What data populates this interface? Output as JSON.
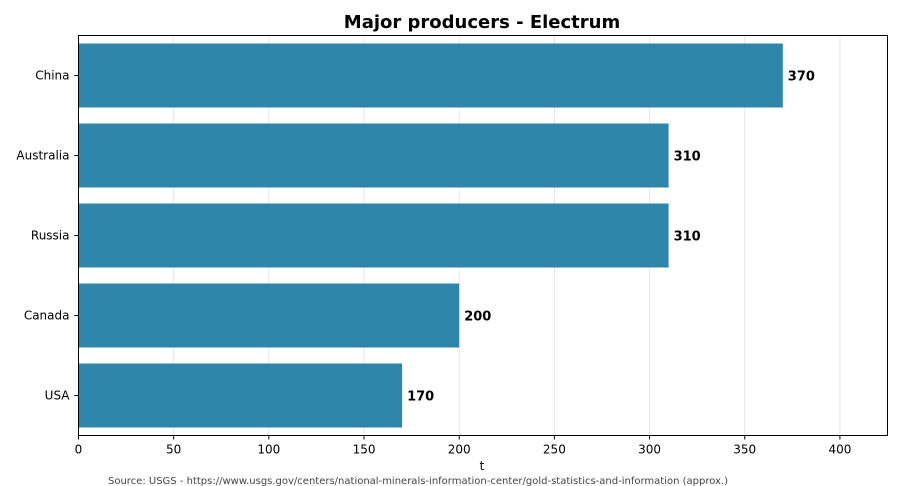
{
  "chart_data": {
    "type": "bar",
    "orientation": "horizontal",
    "title": "Major producers - Electrum",
    "categories": [
      "China",
      "Australia",
      "Russia",
      "Canada",
      "USA"
    ],
    "values": [
      370,
      310,
      310,
      200,
      170
    ],
    "value_labels": [
      "370",
      "310",
      "310",
      "200",
      "170"
    ],
    "xlabel": "t",
    "ylabel": "",
    "xlim": [
      0,
      425
    ],
    "xticks": [
      0,
      50,
      100,
      150,
      200,
      250,
      300,
      350,
      400
    ],
    "xtick_labels": [
      "0",
      "50",
      "100",
      "150",
      "200",
      "250",
      "300",
      "350",
      "400"
    ],
    "grid": "vertical",
    "bar_color": "#2e86ab",
    "source": "Source: USGS - https://www.usgs.gov/centers/national-minerals-information-center/gold-statistics-and-information (approx.)"
  }
}
